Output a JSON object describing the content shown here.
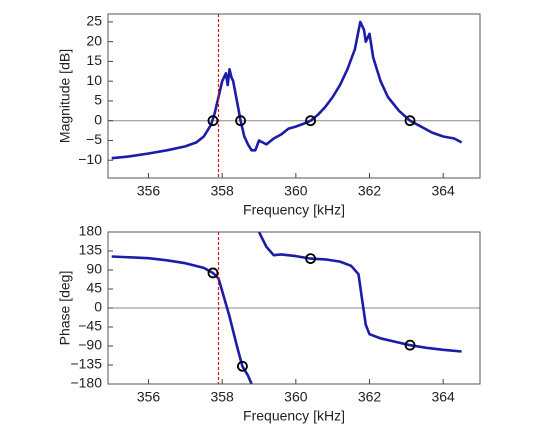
{
  "chart_data": [
    {
      "type": "line",
      "ylabel": "Magnitude [dB]",
      "xlabel": "Frequency [kHz]",
      "xlim": [
        354.9,
        365.0
      ],
      "ylim": [
        -14.5,
        27
      ],
      "xticks": [
        356,
        358,
        360,
        362,
        364
      ],
      "yticks": [
        {
          "value": -10,
          "label": "−10"
        },
        {
          "value": -5,
          "label": "−5"
        },
        0,
        5,
        10,
        15,
        20,
        25
      ],
      "color": "#1c1ca8",
      "vline": 357.9,
      "vline_color": "#e01010",
      "hline": 0,
      "x": [
        355,
        355.5,
        356,
        356.5,
        357,
        357.3,
        357.5,
        357.7,
        357.8,
        357.9,
        358.0,
        358.1,
        358.15,
        358.2,
        358.25,
        358.3,
        358.4,
        358.5,
        358.6,
        358.7,
        358.8,
        358.9,
        359,
        359.2,
        359.4,
        359.6,
        359.8,
        360,
        360.2,
        360.4,
        360.6,
        360.8,
        361,
        361.2,
        361.4,
        361.6,
        361.75,
        361.85,
        361.9,
        362,
        362.1,
        362.3,
        362.5,
        362.8,
        363.1,
        363.4,
        363.7,
        364,
        364.3,
        364.5
      ],
      "values": [
        -9.5,
        -9,
        -8.3,
        -7.5,
        -6.5,
        -5.5,
        -4,
        -1,
        2,
        6,
        10,
        12,
        9,
        13,
        11,
        10,
        5,
        0,
        -4,
        -6,
        -7.5,
        -7.5,
        -5,
        -6,
        -4.5,
        -3.5,
        -2,
        -1.5,
        -0.8,
        0,
        1.5,
        3.5,
        6,
        9,
        13,
        18,
        25,
        23,
        20,
        22,
        16,
        10,
        6,
        2.5,
        0,
        -1.5,
        -3,
        -4,
        -4.5,
        -5.5
      ],
      "markers": {
        "x": [
          357.75,
          358.5,
          360.4,
          363.1
        ],
        "values": [
          0,
          0,
          0,
          0
        ]
      }
    },
    {
      "type": "line",
      "ylabel": "Phase [deg]",
      "xlabel": "Frequency [kHz]",
      "xlim": [
        354.9,
        365.0
      ],
      "ylim": [
        -180,
        180
      ],
      "xticks": [
        356,
        358,
        360,
        362,
        364
      ],
      "yticks": [
        {
          "value": -180,
          "label": "−180"
        },
        {
          "value": -135,
          "label": "−135"
        },
        {
          "value": -90,
          "label": "−90"
        },
        {
          "value": -45,
          "label": "−45"
        },
        0,
        45,
        90,
        135,
        180
      ],
      "color": "#1c1ca8",
      "vline": 357.9,
      "vline_color": "#e01010",
      "hline": 0,
      "x": [
        355,
        356,
        356.5,
        357,
        357.5,
        357.75,
        357.9,
        358,
        358.2,
        358.4,
        358.55,
        358.7,
        358.8,
        358.9,
        359.0,
        359.2,
        359.4,
        359.6,
        360,
        360.4,
        360.8,
        361.2,
        361.5,
        361.7,
        361.8,
        361.9,
        362,
        362.3,
        362.8,
        363.1,
        363.6,
        364,
        364.5
      ],
      "values": [
        122,
        118,
        113,
        106,
        95,
        83,
        70,
        40,
        -20,
        -90,
        -138,
        -160,
        -180,
        null,
        180,
        145,
        125,
        127,
        123,
        117,
        115,
        110,
        100,
        80,
        20,
        -40,
        -62,
        -72,
        -82,
        -88,
        -95,
        -99,
        -103
      ],
      "markers": {
        "x": [
          357.75,
          358.55,
          360.4,
          363.1
        ],
        "values": [
          83,
          -138,
          117,
          -88
        ]
      }
    }
  ]
}
